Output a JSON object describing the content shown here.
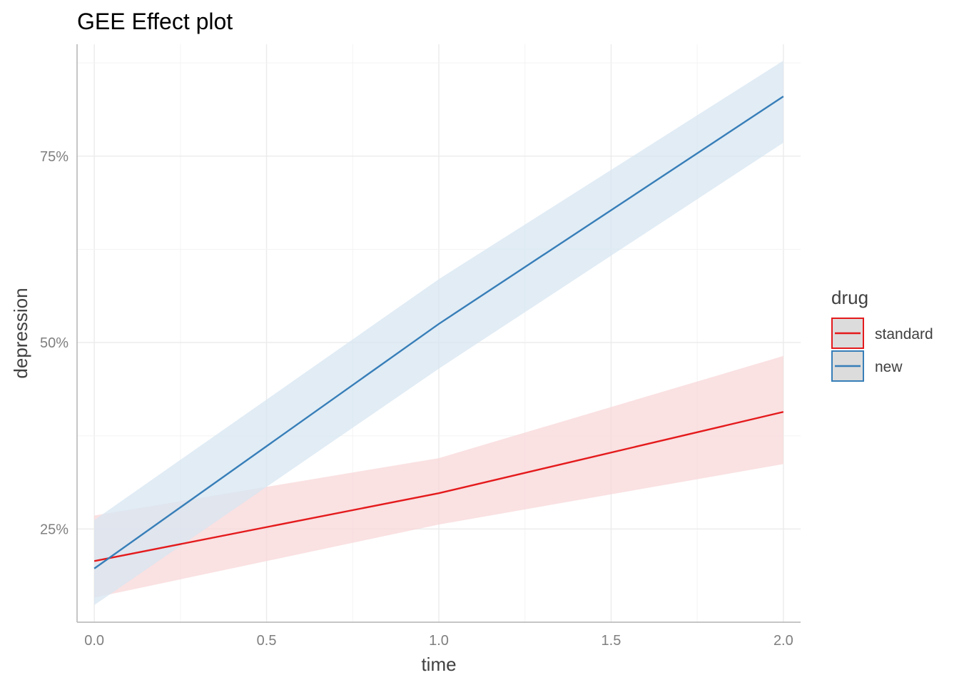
{
  "chart_data": {
    "type": "line",
    "title": "GEE Effect plot",
    "xlabel": "time",
    "ylabel": "depression",
    "x_ticks": [
      "0.0",
      "0.5",
      "1.0",
      "1.5",
      "2.0"
    ],
    "x_tick_values": [
      0,
      0.5,
      1,
      1.5,
      2
    ],
    "y_ticks": [
      "25%",
      "50%",
      "75%"
    ],
    "y_tick_values": [
      0.25,
      0.5,
      0.75
    ],
    "xlim": [
      -0.05,
      2.05
    ],
    "ylim": [
      0.125,
      0.9
    ],
    "grid": true,
    "legend": {
      "title": "drug",
      "placement": "right"
    },
    "x": [
      0,
      1,
      2
    ],
    "series": [
      {
        "name": "standard",
        "color": "#e41a1c",
        "band_color": "#f8d7d8",
        "values": [
          0.207,
          0.298,
          0.407
        ],
        "lower": [
          0.158,
          0.256,
          0.337
        ],
        "upper": [
          0.268,
          0.345,
          0.482
        ]
      },
      {
        "name": "new",
        "color": "#377eb8",
        "band_color": "#d7e5f1",
        "values": [
          0.197,
          0.525,
          0.83
        ],
        "lower": [
          0.148,
          0.465,
          0.768
        ],
        "upper": [
          0.262,
          0.585,
          0.878
        ]
      }
    ]
  }
}
